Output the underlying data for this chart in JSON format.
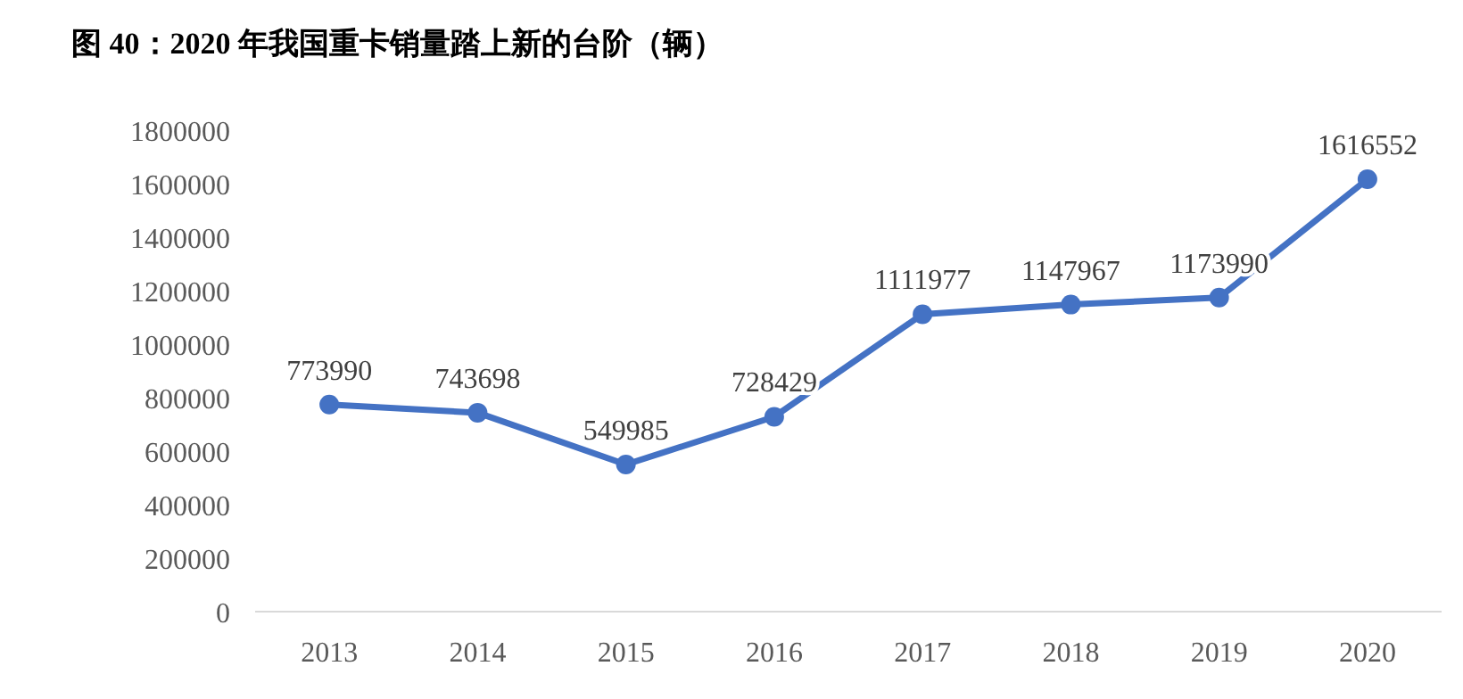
{
  "chart_data": {
    "type": "line",
    "title": "图 40：2020 年我国重卡销量踏上新的台阶（辆）",
    "categories": [
      "2013",
      "2014",
      "2015",
      "2016",
      "2017",
      "2018",
      "2019",
      "2020"
    ],
    "series": [
      {
        "color": "#4472c4",
        "values": [
          773990,
          743698,
          549985,
          728429,
          1111977,
          1147967,
          1173990,
          1616552
        ]
      }
    ],
    "ylim": [
      0,
      1800000
    ],
    "yticks": [
      0,
      200000,
      400000,
      600000,
      800000,
      1000000,
      1200000,
      1400000,
      1600000,
      1800000
    ],
    "grid": false,
    "marker": "circle",
    "line_style": "solid",
    "data_labels": true
  }
}
